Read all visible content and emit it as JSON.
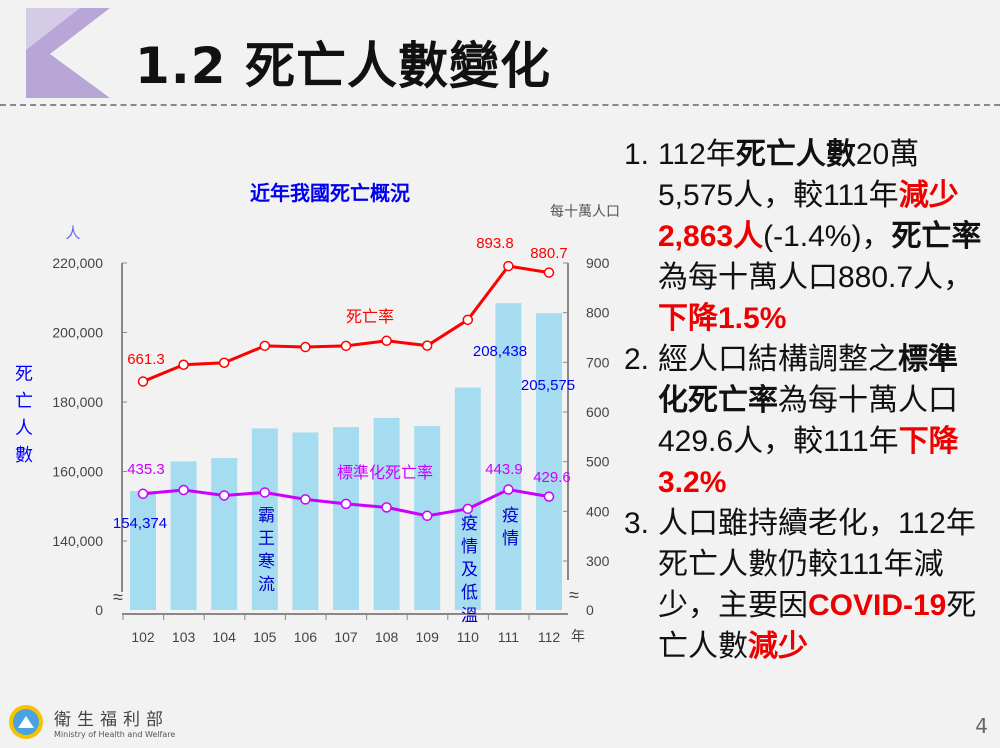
{
  "slide": {
    "title": "1.2 死亡人數變化",
    "page": "4",
    "org_name": "衛生福利部",
    "org_en": "Ministry of Health and Welfare"
  },
  "bullets": [
    {
      "num": "1.",
      "parts": [
        {
          "t": "112年"
        },
        {
          "t": "死亡人數",
          "s": "b"
        },
        {
          "t": "20萬5,575人，較111年"
        },
        {
          "t": "減少2,863人",
          "s": "red"
        },
        {
          "t": "(-1.4%)，"
        },
        {
          "t": "死亡率",
          "s": "b"
        },
        {
          "t": "為每十萬人口880.7人，"
        },
        {
          "t": "下降1.5%",
          "s": "red"
        }
      ]
    },
    {
      "num": "2.",
      "parts": [
        {
          "t": "經人口結構調整之"
        },
        {
          "t": "標準化死亡率",
          "s": "b"
        },
        {
          "t": "為每十萬人口429.6人，較111年"
        },
        {
          "t": "下降3.2%",
          "s": "red"
        }
      ]
    },
    {
      "num": "3.",
      "parts": [
        {
          "t": "人口雖持續老化，112年死亡人數仍較111年減少，主要因"
        },
        {
          "t": "COVID-19",
          "s": "red"
        },
        {
          "t": "死亡人數"
        },
        {
          "t": "減少",
          "s": "red"
        }
      ]
    }
  ],
  "chart_data": {
    "type": "bar+line",
    "title": "近年我國死亡概況",
    "xlabel": "年",
    "ylabel": "死亡人數",
    "ylabel_unit": "人",
    "y2label": "每十萬人口",
    "categories": [
      "102",
      "103",
      "104",
      "105",
      "106",
      "107",
      "108",
      "109",
      "110",
      "111",
      "112"
    ],
    "yticks": [
      "0",
      "140,000",
      "160,000",
      "180,000",
      "200,000",
      "220,000"
    ],
    "y2ticks": [
      "0",
      "300",
      "400",
      "500",
      "600",
      "700",
      "800",
      "900"
    ],
    "ylim": [
      0,
      220000
    ],
    "ylim_break": [
      0,
      130000
    ],
    "y2lim": [
      0,
      900
    ],
    "y2lim_break": [
      0,
      250
    ],
    "series": [
      {
        "name": "死亡人數",
        "type": "bar",
        "color": "#a6dcef",
        "values": [
          154374,
          162911,
          163858,
          172405,
          171242,
          172784,
          175424,
          173067,
          184172,
          208438,
          205575
        ],
        "labels": {
          "0": "154,374",
          "9": "208,438",
          "10": "205,575"
        }
      },
      {
        "name": "死亡率",
        "type": "line",
        "axis": "right",
        "color": "#ff0000",
        "values": [
          661.3,
          695.1,
          699.2,
          733.2,
          730.8,
          733.2,
          743.4,
          733.6,
          785.6,
          893.8,
          880.7
        ],
        "labels": {
          "0": "661.3",
          "9": "893.8",
          "10": "880.7"
        }
      },
      {
        "name": "標準化死亡率",
        "type": "line",
        "axis": "right",
        "color": "#cc00ff",
        "values": [
          435.3,
          443.0,
          432.0,
          438.0,
          424.0,
          415.0,
          408.0,
          391.0,
          405.0,
          443.9,
          429.6
        ],
        "labels": {
          "0": "435.3",
          "9": "443.9",
          "10": "429.6"
        }
      }
    ],
    "annotations": [
      {
        "index": 3,
        "text": "霸王寒流"
      },
      {
        "index": 8,
        "text": "疫情及低溫"
      },
      {
        "index": 9,
        "text": "疫情"
      }
    ],
    "break_symbol": "≈"
  }
}
